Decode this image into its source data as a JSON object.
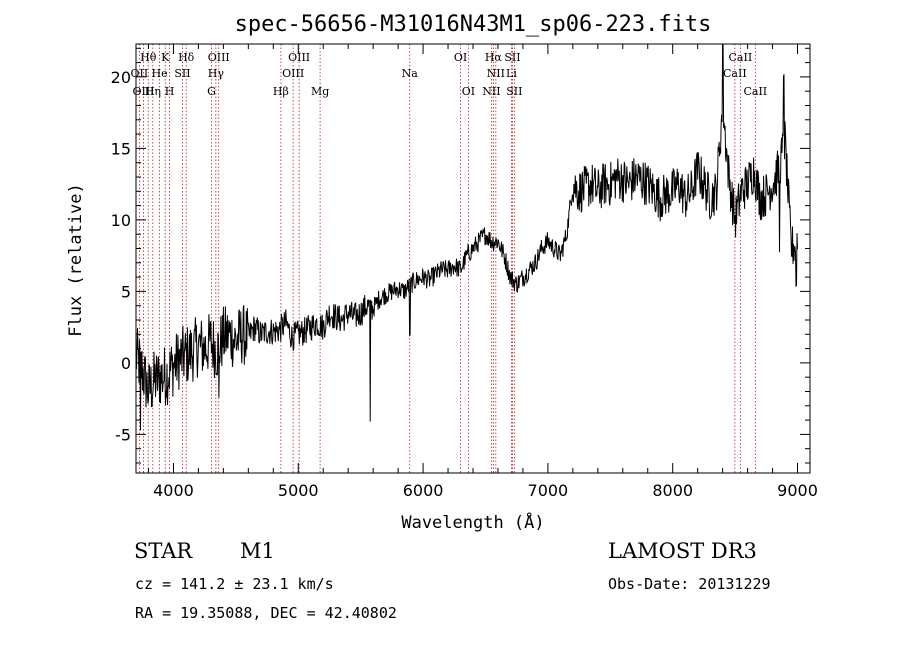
{
  "chart_data": {
    "type": "line",
    "title": "spec-56656-M31016N43M1_sp06-223.fits",
    "xlabel": "Wavelength (Å)",
    "ylabel": "Flux (relative)",
    "xlim": [
      3700,
      9100
    ],
    "ylim": [
      -7.7,
      22.3
    ],
    "xticks": [
      4000,
      5000,
      6000,
      7000,
      8000,
      9000
    ],
    "yticks": [
      -5,
      0,
      5,
      10,
      15,
      20
    ],
    "series": [
      {
        "name": "flux",
        "x": [
          3700,
          3750,
          3800,
          3850,
          3900,
          3950,
          4000,
          4050,
          4100,
          4150,
          4200,
          4250,
          4300,
          4350,
          4400,
          4450,
          4500,
          4550,
          4600,
          4650,
          4700,
          4750,
          4800,
          4850,
          4900,
          4950,
          5000,
          5050,
          5100,
          5150,
          5200,
          5250,
          5300,
          5350,
          5400,
          5450,
          5500,
          5550,
          5600,
          5650,
          5700,
          5750,
          5800,
          5850,
          5900,
          5950,
          6000,
          6050,
          6100,
          6150,
          6200,
          6250,
          6300,
          6350,
          6400,
          6450,
          6500,
          6550,
          6600,
          6650,
          6700,
          6750,
          6800,
          6850,
          6900,
          6950,
          7000,
          7050,
          7100,
          7150,
          7200,
          7250,
          7300,
          7350,
          7400,
          7450,
          7500,
          7550,
          7600,
          7650,
          7700,
          7750,
          7800,
          7850,
          7900,
          7950,
          8000,
          8050,
          8100,
          8150,
          8200,
          8250,
          8300,
          8350,
          8400,
          8450,
          8500,
          8550,
          8600,
          8650,
          8700,
          8750,
          8800,
          8850,
          8900,
          8950,
          9000
        ],
        "y": [
          0.5,
          -0.5,
          -2.0,
          -1.2,
          -1.0,
          -0.8,
          -0.2,
          0.3,
          0.5,
          0.8,
          1.2,
          1.0,
          1.5,
          0.8,
          1.8,
          2.0,
          1.5,
          2.0,
          1.8,
          2.5,
          2.0,
          2.2,
          2.2,
          2.3,
          2.8,
          1.8,
          2.0,
          2.2,
          2.5,
          2.8,
          2.5,
          3.5,
          3.2,
          3.0,
          3.5,
          3.2,
          3.5,
          4.0,
          3.8,
          4.5,
          4.8,
          5.0,
          5.2,
          5.0,
          5.5,
          5.8,
          6.0,
          5.8,
          6.2,
          6.5,
          6.5,
          6.8,
          6.5,
          7.5,
          8.0,
          8.5,
          9.0,
          8.5,
          8.5,
          7.5,
          6.0,
          5.5,
          6.0,
          6.5,
          7.0,
          8.0,
          8.5,
          8.0,
          7.5,
          9.0,
          12.5,
          12.0,
          12.2,
          12.5,
          12.0,
          12.5,
          12.5,
          13.0,
          12.8,
          12.5,
          13.0,
          12.8,
          12.5,
          12.0,
          11.5,
          11.8,
          12.0,
          12.5,
          11.5,
          12.0,
          13.5,
          12.5,
          11.5,
          12.0,
          18.0,
          13.0,
          10.0,
          12.0,
          12.5,
          13.5,
          11.5,
          11.8,
          12.5,
          13.5,
          15.5,
          8.0,
          8.5
        ]
      }
    ],
    "emission_lines": [
      {
        "label": "Hθ",
        "wavelength": 3798,
        "row": 0
      },
      {
        "label": "OII",
        "wavelength": 3727,
        "row": 1
      },
      {
        "label": "OIII",
        "wavelength": 3760,
        "row": 2
      },
      {
        "label": "He",
        "wavelength": 3889,
        "row": 1
      },
      {
        "label": "K",
        "wavelength": 3934,
        "row": 0
      },
      {
        "label": "Hη",
        "wavelength": 3835,
        "row": 2
      },
      {
        "label": "SII",
        "wavelength": 4072,
        "row": 1
      },
      {
        "label": "H",
        "wavelength": 3969,
        "row": 2
      },
      {
        "label": "Hδ",
        "wavelength": 4102,
        "row": 0
      },
      {
        "label": "OIII",
        "wavelength": 4363,
        "row": 0
      },
      {
        "label": "Hγ",
        "wavelength": 4340,
        "row": 1
      },
      {
        "label": "G",
        "wavelength": 4305,
        "row": 2
      },
      {
        "label": "OIII",
        "wavelength": 5007,
        "row": 0
      },
      {
        "label": "OIII",
        "wavelength": 4959,
        "row": 1
      },
      {
        "label": "Hβ",
        "wavelength": 4861,
        "row": 2
      },
      {
        "label": "Mg",
        "wavelength": 5175,
        "row": 2
      },
      {
        "label": "Na",
        "wavelength": 5893,
        "row": 1
      },
      {
        "label": "OI",
        "wavelength": 6300,
        "row": 0
      },
      {
        "label": "OI",
        "wavelength": 6363,
        "row": 2
      },
      {
        "label": "Hα",
        "wavelength": 6563,
        "row": 0
      },
      {
        "label": "SII",
        "wavelength": 6716,
        "row": 0
      },
      {
        "label": "NII",
        "wavelength": 6583,
        "row": 1
      },
      {
        "label": "Li",
        "wavelength": 6708,
        "row": 1
      },
      {
        "label": "NII",
        "wavelength": 6548,
        "row": 2
      },
      {
        "label": "SII",
        "wavelength": 6731,
        "row": 2
      },
      {
        "label": "CaII",
        "wavelength": 8542,
        "row": 0
      },
      {
        "label": "CaII",
        "wavelength": 8498,
        "row": 1
      },
      {
        "label": "CaII",
        "wavelength": 8662,
        "row": 2
      }
    ]
  },
  "info": {
    "object_class": "STAR",
    "subclass": "M1",
    "survey": "LAMOST DR3",
    "redshift": "cz = 141.2 ± 23.1 km/s",
    "obs_date": "Obs-Date: 20131229",
    "coords": "RA =  19.35088, DEC =  42.40802"
  },
  "colors": {
    "line": "#000000",
    "marker_lines": "#b22222",
    "background": "#ffffff"
  }
}
